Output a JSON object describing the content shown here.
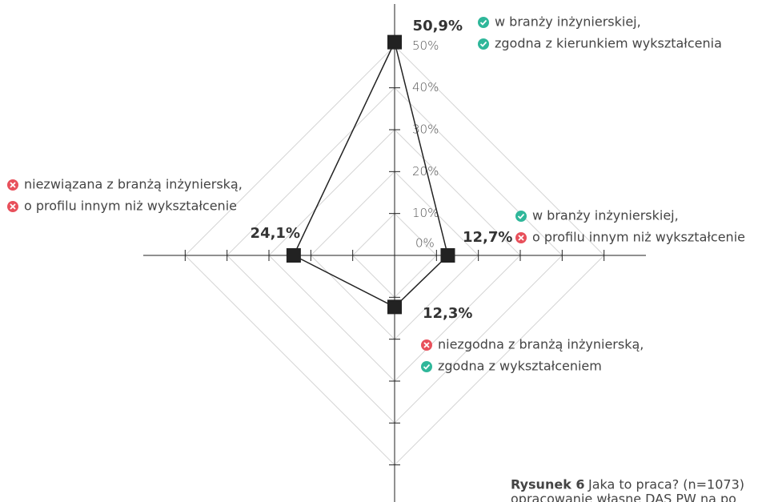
{
  "chart_data": {
    "type": "radar",
    "values": [
      50.9,
      12.7,
      12.3,
      24.1
    ],
    "value_labels": [
      "50,9%",
      "12,7%",
      "12,3%",
      "24,1%"
    ],
    "color": "#222222",
    "ylim": [
      0,
      60
    ],
    "yticks": [
      {
        "value": 0,
        "label": "0%"
      },
      {
        "value": 10,
        "label": "10%"
      },
      {
        "value": 20,
        "label": "20%"
      },
      {
        "value": 30,
        "label": "30%"
      },
      {
        "value": 40,
        "label": "40%"
      },
      {
        "value": 50,
        "label": "50%"
      }
    ],
    "grid": true,
    "annotations": [
      {
        "lines": [
          {
            "text": "w branży inżynierskiej,",
            "ok": true
          },
          {
            "text": "zgodna z kierunkiem wykształcenia",
            "ok": true
          }
        ]
      },
      {
        "lines": [
          {
            "text": "w branży inżynierskiej,",
            "ok": true
          },
          {
            "text": "o profilu innym niż wykształcenie",
            "ok": false
          }
        ]
      },
      {
        "lines": [
          {
            "text": "niezgodna z branżą inżynierską,",
            "ok": false
          },
          {
            "text": "zgodna z wykształceniem",
            "ok": true
          }
        ]
      },
      {
        "lines": [
          {
            "text": "niezwiązana z branżą inżynierską,",
            "ok": false
          },
          {
            "text": "o profilu innym niż wykształcenie",
            "ok": false
          }
        ]
      }
    ],
    "caption": {
      "label": "Rysunek 6",
      "text": "Jaka to praca? (n=1073)",
      "source": "opracowanie własne DAS PW na po"
    }
  }
}
